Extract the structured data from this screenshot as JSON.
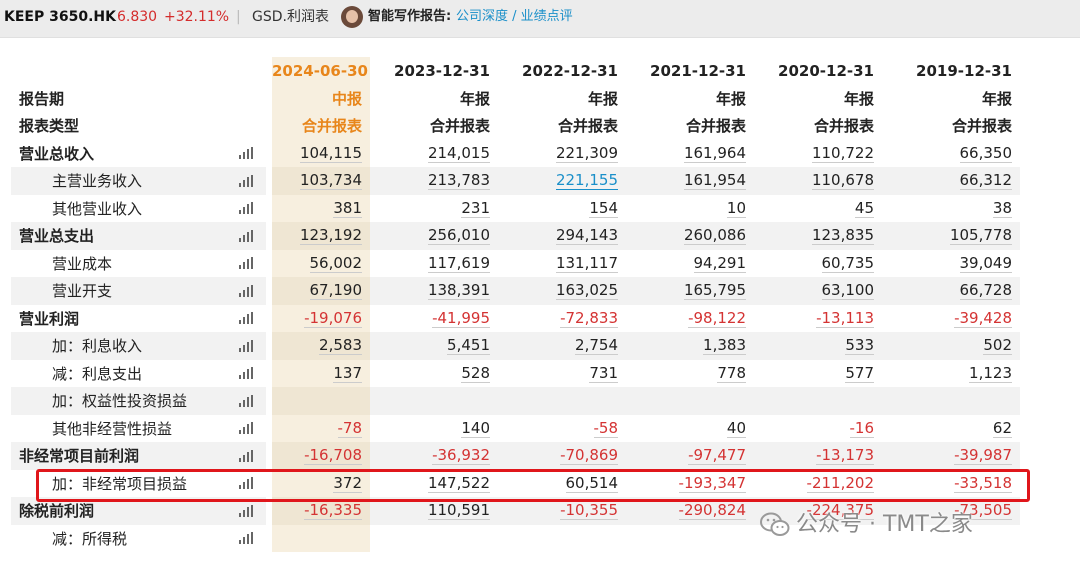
{
  "topbar": {
    "stock_code": "KEEP 3650.HK",
    "price": "6.830",
    "change": "+32.11%",
    "separator": "|",
    "gsd_link": "GSD.利润表",
    "ai_label": "智能写作报告:",
    "ai_links": "公司深度 / 业绩点评"
  },
  "header": {
    "row_label_period": "报告期",
    "row_label_type": "报表类型",
    "columns": [
      {
        "date": "2024-06-30",
        "period": "中报",
        "type": "合并报表"
      },
      {
        "date": "2023-12-31",
        "period": "年报",
        "type": "合并报表"
      },
      {
        "date": "2022-12-31",
        "period": "年报",
        "type": "合并报表"
      },
      {
        "date": "2021-12-31",
        "period": "年报",
        "type": "合并报表"
      },
      {
        "date": "2020-12-31",
        "period": "年报",
        "type": "合并报表"
      },
      {
        "date": "2019-12-31",
        "period": "年报",
        "type": "合并报表"
      }
    ]
  },
  "rows": [
    {
      "label": "营业总收入",
      "bold": true,
      "values": [
        "104,115",
        "214,015",
        "221,309",
        "161,964",
        "110,722",
        "66,350"
      ]
    },
    {
      "label": "主营业务收入",
      "indent": true,
      "values": [
        "103,734",
        "213,783",
        "221,155",
        "161,954",
        "110,678",
        "66,312"
      ]
    },
    {
      "label": "其他营业收入",
      "indent": true,
      "values": [
        "381",
        "231",
        "154",
        "10",
        "45",
        "38"
      ]
    },
    {
      "label": "营业总支出",
      "bold": true,
      "values": [
        "123,192",
        "256,010",
        "294,143",
        "260,086",
        "123,835",
        "105,778"
      ]
    },
    {
      "label": "营业成本",
      "indent": true,
      "values": [
        "56,002",
        "117,619",
        "131,117",
        "94,291",
        "60,735",
        "39,049"
      ]
    },
    {
      "label": "营业开支",
      "indent": true,
      "values": [
        "67,190",
        "138,391",
        "163,025",
        "165,795",
        "63,100",
        "66,728"
      ]
    },
    {
      "label": "营业利润",
      "bold": true,
      "values": [
        "-19,076",
        "-41,995",
        "-72,833",
        "-98,122",
        "-13,113",
        "-39,428"
      ]
    },
    {
      "label": "加：利息收入",
      "indent": true,
      "values": [
        "2,583",
        "5,451",
        "2,754",
        "1,383",
        "533",
        "502"
      ]
    },
    {
      "label": "减：利息支出",
      "indent": true,
      "values": [
        "137",
        "528",
        "731",
        "778",
        "577",
        "1,123"
      ]
    },
    {
      "label": "加：权益性投资损益",
      "indent": true,
      "values": [
        "",
        "",
        "",
        "",
        "",
        ""
      ]
    },
    {
      "label": "其他非经营性损益",
      "indent": true,
      "values": [
        "-78",
        "140",
        "-58",
        "40",
        "-16",
        "62"
      ]
    },
    {
      "label": "非经常项目前利润",
      "bold": true,
      "values": [
        "-16,708",
        "-36,932",
        "-70,869",
        "-97,477",
        "-13,173",
        "-39,987"
      ]
    },
    {
      "label": "加：非经常项目损益",
      "indent": true,
      "values": [
        "372",
        "147,522",
        "60,514",
        "-193,347",
        "-211,202",
        "-33,518"
      ]
    },
    {
      "label": "除税前利润",
      "bold": true,
      "values": [
        "-16,335",
        "110,591",
        "-10,355",
        "-290,824",
        "-224,375",
        "-73,505"
      ]
    },
    {
      "label": "减：所得税",
      "indent": true,
      "values": [
        "",
        "",
        "",
        "",
        "",
        ""
      ]
    }
  ],
  "watermark": "公众号 · TMT之家",
  "colors": {
    "negative": "#d43333",
    "orange": "#e8861b",
    "link": "#1a8fc9",
    "highlight": "#e0161b"
  }
}
